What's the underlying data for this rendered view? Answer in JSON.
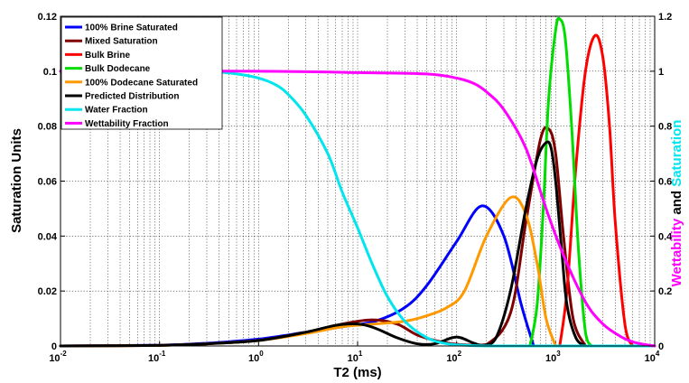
{
  "chart_data": {
    "type": "line",
    "xlabel": "T2 (ms)",
    "ylabel": "Saturation Units",
    "y2label_parts": [
      "Wettability",
      " and ",
      "Saturation"
    ],
    "y2label_colors": [
      "#ff00ff",
      "#000000",
      "#00e5ee"
    ],
    "x_scale": "log",
    "xlim": [
      0.01,
      10000
    ],
    "ylim": [
      0,
      0.12
    ],
    "y2lim": [
      0,
      1.2
    ],
    "grid": "x-major-and-minor, y-major",
    "legend_position": "top-left",
    "x_ticks": [
      {
        "base": "10",
        "exp": "-2",
        "value": 0.01
      },
      {
        "base": "10",
        "exp": "-1",
        "value": 0.1
      },
      {
        "base": "10",
        "exp": "0",
        "value": 1
      },
      {
        "base": "10",
        "exp": "1",
        "value": 10
      },
      {
        "base": "10",
        "exp": "2",
        "value": 100
      },
      {
        "base": "10",
        "exp": "3",
        "value": 1000
      },
      {
        "base": "10",
        "exp": "4",
        "value": 10000
      }
    ],
    "y_ticks": [
      "0",
      "0.02",
      "0.04",
      "0.06",
      "0.08",
      "0.1",
      "0.12"
    ],
    "y_tick_values": [
      0,
      0.02,
      0.04,
      0.06,
      0.08,
      0.1,
      0.12
    ],
    "y2_ticks": [
      "0",
      "0.2",
      "0.4",
      "0.6",
      "0.8",
      "1",
      "1.2"
    ],
    "y2_tick_values": [
      0,
      0.2,
      0.4,
      0.6,
      0.8,
      1.0,
      1.2
    ],
    "series": [
      {
        "name": "100% Brine Saturated",
        "color": "#0000ff",
        "axis": "left",
        "x": [
          0.01,
          0.1,
          0.3,
          1,
          3,
          7,
          15,
          30,
          50,
          100,
          180,
          300,
          450,
          600
        ],
        "y": [
          0,
          0.0003,
          0.001,
          0.0025,
          0.005,
          0.007,
          0.009,
          0.014,
          0.022,
          0.038,
          0.051,
          0.04,
          0.015,
          0
        ]
      },
      {
        "name": "Mixed Saturation",
        "color": "#800000",
        "axis": "left",
        "x": [
          0.01,
          0.1,
          0.3,
          1,
          3,
          7,
          14,
          25,
          40,
          70,
          110,
          200,
          350,
          500,
          700,
          850,
          1000,
          1200,
          1500,
          2000
        ],
        "y": [
          0,
          0.0002,
          0.0008,
          0.002,
          0.005,
          0.008,
          0.0095,
          0.008,
          0.004,
          0.0015,
          0.0005,
          0.0005,
          0.012,
          0.045,
          0.075,
          0.079,
          0.07,
          0.04,
          0.01,
          0
        ]
      },
      {
        "name": "Bulk Brine",
        "color": "#ff0000",
        "axis": "left",
        "x": [
          1100,
          1300,
          1600,
          2000,
          2500,
          3000,
          3500,
          4000,
          5000,
          6000
        ],
        "y": [
          0,
          0.02,
          0.065,
          0.1,
          0.113,
          0.105,
          0.08,
          0.045,
          0.008,
          0
        ]
      },
      {
        "name": "Bulk Dodecane",
        "color": "#00dd00",
        "axis": "left",
        "x": [
          550,
          650,
          750,
          850,
          1000,
          1100,
          1250,
          1450,
          1700,
          2000,
          2300
        ],
        "y": [
          0,
          0.015,
          0.05,
          0.09,
          0.115,
          0.119,
          0.112,
          0.08,
          0.035,
          0.005,
          0
        ]
      },
      {
        "name": "100% Dodecane Saturated",
        "color": "#ff9900",
        "axis": "left",
        "x": [
          0.01,
          0.1,
          0.3,
          1,
          3,
          7,
          15,
          30,
          50,
          80,
          120,
          200,
          350,
          500,
          650,
          800,
          1000
        ],
        "y": [
          0,
          0.0002,
          0.0008,
          0.002,
          0.0045,
          0.007,
          0.008,
          0.009,
          0.011,
          0.014,
          0.02,
          0.04,
          0.054,
          0.048,
          0.03,
          0.01,
          0
        ]
      },
      {
        "name": "Predicted Distribution",
        "color": "#000000",
        "axis": "left",
        "x": [
          0.01,
          0.1,
          0.3,
          1,
          3,
          6,
          10,
          15,
          25,
          40,
          60,
          90,
          110,
          150,
          190,
          250,
          350,
          500,
          650,
          800,
          900,
          1000,
          1150,
          1300,
          1600,
          2000
        ],
        "y": [
          0,
          0.0002,
          0.0008,
          0.002,
          0.005,
          0.0075,
          0.008,
          0.0065,
          0.003,
          0.0008,
          0.0008,
          0.003,
          0.003,
          0.001,
          0.0003,
          0.003,
          0.02,
          0.05,
          0.068,
          0.074,
          0.072,
          0.06,
          0.035,
          0.015,
          0.003,
          0
        ]
      },
      {
        "name": "Water Fraction",
        "color": "#00e5ee",
        "axis": "right",
        "x": [
          0.01,
          0.1,
          0.3,
          0.6,
          1,
          1.5,
          2,
          3,
          5,
          7,
          10,
          14,
          20,
          30,
          50,
          80,
          130,
          200,
          500,
          10000
        ],
        "y": [
          1.0,
          1.0,
          1.0,
          0.99,
          0.975,
          0.95,
          0.915,
          0.84,
          0.7,
          0.56,
          0.43,
          0.3,
          0.18,
          0.09,
          0.03,
          0.008,
          0.002,
          0,
          0,
          0
        ]
      },
      {
        "name": "Wettability Fraction",
        "color": "#ff00ff",
        "axis": "right",
        "x": [
          0.01,
          1,
          10,
          50,
          100,
          150,
          200,
          300,
          500,
          800,
          1200,
          2000,
          3000,
          4500,
          6000,
          8000,
          10000
        ],
        "y": [
          1.0,
          1.0,
          0.995,
          0.99,
          0.975,
          0.955,
          0.925,
          0.86,
          0.72,
          0.5,
          0.33,
          0.16,
          0.08,
          0.035,
          0.015,
          0.005,
          0
        ]
      }
    ]
  }
}
